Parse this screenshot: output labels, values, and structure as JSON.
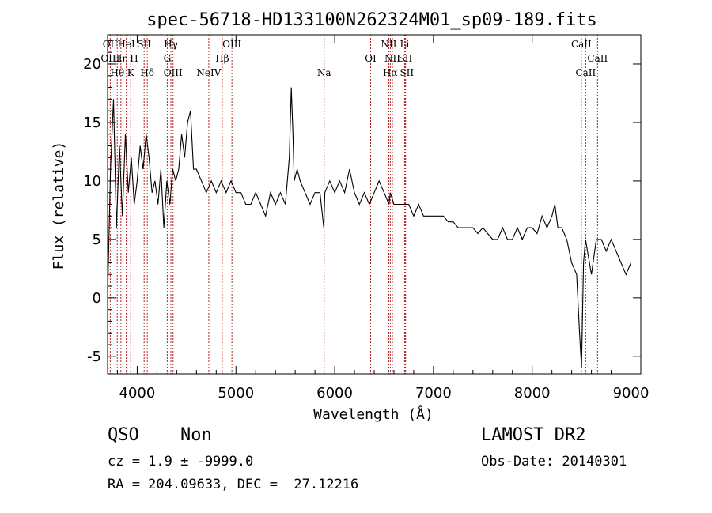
{
  "chart_data": {
    "type": "line",
    "title": "spec-56718-HD133100N262324M01_sp09-189.fits",
    "xlabel": "Wavelength (Å)",
    "ylabel": "Flux (relative)",
    "xlim": [
      3700,
      9100
    ],
    "ylim": [
      -6.5,
      22.5
    ],
    "xticks": [
      4000,
      5000,
      6000,
      7000,
      8000,
      9000
    ],
    "yticks": [
      -5,
      0,
      5,
      10,
      15,
      20
    ],
    "grid": false,
    "line_color": "#000000",
    "marker_color": "#b22222",
    "series": [
      {
        "x": [
          3700,
          3730,
          3760,
          3790,
          3820,
          3850,
          3880,
          3910,
          3940,
          3970,
          4000,
          4030,
          4060,
          4090,
          4120,
          4150,
          4180,
          4210,
          4240,
          4270,
          4300,
          4330,
          4360,
          4390,
          4420,
          4450,
          4480,
          4510,
          4540,
          4570,
          4600,
          4650,
          4700,
          4750,
          4800,
          4850,
          4900,
          4950,
          5000,
          5050,
          5100,
          5150,
          5200,
          5250,
          5300,
          5350,
          5400,
          5450,
          5500,
          5540,
          5560,
          5577,
          5590,
          5620,
          5650,
          5700,
          5750,
          5800,
          5850,
          5890,
          5900,
          5950,
          6000,
          6050,
          6100,
          6150,
          6200,
          6250,
          6300,
          6350,
          6400,
          6450,
          6500,
          6550,
          6563,
          6600,
          6650,
          6700,
          6750,
          6800,
          6850,
          6900,
          6950,
          7000,
          7050,
          7100,
          7150,
          7200,
          7250,
          7300,
          7350,
          7400,
          7450,
          7500,
          7550,
          7600,
          7650,
          7700,
          7750,
          7800,
          7850,
          7900,
          7950,
          8000,
          8050,
          8100,
          8150,
          8200,
          8230,
          8260,
          8300,
          8350,
          8400,
          8450,
          8480,
          8500,
          8520,
          8540,
          8560,
          8580,
          8600,
          8650,
          8700,
          8750,
          8800,
          8850,
          8900,
          8950,
          9000
        ],
        "y": [
          0,
          11,
          17,
          6,
          13,
          7,
          14,
          9,
          12,
          8,
          10,
          13,
          11,
          14,
          12,
          9,
          10,
          8,
          11,
          6,
          10,
          8,
          11,
          10,
          11,
          14,
          12,
          15,
          16,
          11,
          11,
          10,
          9,
          10,
          9,
          10,
          9,
          10,
          9,
          9,
          8,
          8,
          9,
          8,
          7,
          9,
          8,
          9,
          8,
          12,
          18,
          14,
          10,
          11,
          10,
          9,
          8,
          9,
          9,
          6,
          9,
          10,
          9,
          10,
          9,
          11,
          9,
          8,
          9,
          8,
          9,
          10,
          9,
          8,
          9,
          8,
          8,
          8,
          8,
          7,
          8,
          7,
          7,
          7,
          7,
          7,
          6.5,
          6.5,
          6,
          6,
          6,
          6,
          5.5,
          6,
          5.5,
          5,
          5,
          6,
          5,
          5,
          6,
          5,
          6,
          6,
          5.5,
          7,
          6,
          7,
          8,
          6,
          6,
          5,
          3,
          2,
          -3,
          -6,
          3,
          5,
          4,
          3,
          2,
          5,
          5,
          4,
          5,
          4,
          3,
          2,
          3
        ]
      }
    ],
    "lines": [
      {
        "label": "OII",
        "wl": 3727,
        "row": 1
      },
      {
        "label": "HeI",
        "wl": 3889,
        "row": 1
      },
      {
        "label": "SII",
        "wl": 4070,
        "row": 1
      },
      {
        "label": "Hγ",
        "wl": 4341,
        "row": 1
      },
      {
        "label": "OIII",
        "wl": 4959,
        "row": 1
      },
      {
        "label": "NII",
        "wl": 6548,
        "row": 1
      },
      {
        "label": "Li",
        "wl": 6708,
        "row": 1
      },
      {
        "label": "CaII",
        "wl": 8498,
        "row": 1
      },
      {
        "label": "OIII",
        "wl": 3727,
        "row": 2
      },
      {
        "label": "Hη",
        "wl": 3835,
        "row": 2
      },
      {
        "label": "H",
        "wl": 3968,
        "row": 2
      },
      {
        "label": "G",
        "wl": 4304,
        "row": 2
      },
      {
        "label": "Hβ",
        "wl": 4861,
        "row": 2
      },
      {
        "label": "OI",
        "wl": 6364,
        "row": 2
      },
      {
        "label": "NII",
        "wl": 6584,
        "row": 2
      },
      {
        "label": "SII",
        "wl": 6716,
        "row": 2
      },
      {
        "label": "CaII",
        "wl": 8662,
        "row": 2
      },
      {
        "label": "Hθ",
        "wl": 3798,
        "row": 3
      },
      {
        "label": "K",
        "wl": 3934,
        "row": 3
      },
      {
        "label": "Hδ",
        "wl": 4102,
        "row": 3
      },
      {
        "label": "OIII",
        "wl": 4363,
        "row": 3
      },
      {
        "label": "NeIV",
        "wl": 4725,
        "row": 3
      },
      {
        "label": "Na",
        "wl": 5893,
        "row": 3
      },
      {
        "label": "Hα",
        "wl": 6563,
        "row": 3
      },
      {
        "label": "SII",
        "wl": 6731,
        "row": 3
      },
      {
        "label": "CaII",
        "wl": 8542,
        "row": 3
      }
    ]
  },
  "info": {
    "class": "QSO",
    "subclass": "Non",
    "cz": "cz = 1.9 ± -9999.0",
    "coords": "RA = 204.09633, DEC =  27.12216",
    "survey": "LAMOST DR2",
    "obsdate": "Obs-Date: 20140301"
  }
}
